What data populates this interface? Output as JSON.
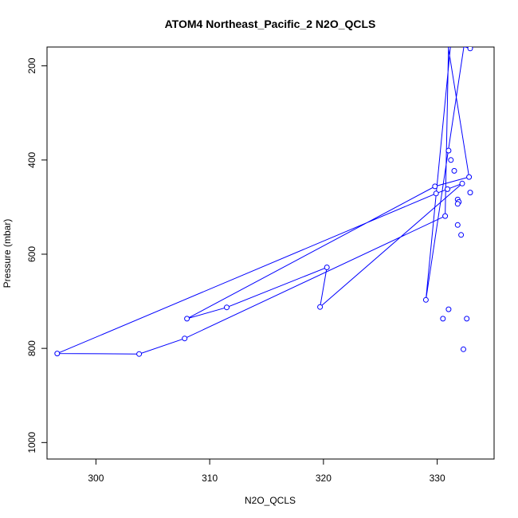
{
  "chart_data": {
    "type": "line",
    "title": "ATOM4 Northeast_Pacific_2 N2O_QCLS",
    "xlabel": "N2O_QCLS",
    "ylabel": "Pressure (mbar)",
    "xlim": [
      295.7,
      335.0
    ],
    "ylim": [
      1035,
      160
    ],
    "y_reversed": true,
    "x_ticks": [
      300,
      310,
      320,
      330
    ],
    "y_ticks": [
      200,
      400,
      600,
      800,
      1000
    ],
    "grid": false,
    "series_color": "#0000ff",
    "series": [
      {
        "x": [
          332.9,
          331.0,
          332.6,
          330.9,
          330.7,
          331.8,
          332.6,
          332.7,
          332.2,
          331.9,
          331.8,
          331.3,
          331.1,
          330.9,
          332.8,
          329.8,
          308.0,
          311.5,
          320.3,
          319.7,
          332.2,
          329.9,
          296.6,
          303.8,
          307.8,
          330.7,
          331.0,
          331.9,
          332.2,
          331.7,
          331.9,
          332.1,
          330.9,
          330.5,
          331.2,
          329.0,
          332.4
        ],
        "y": [
          163,
          150,
          150,
          150,
          150,
          150,
          150,
          150,
          150,
          150,
          150,
          150,
          150,
          150,
          436,
          456,
          737,
          713,
          628,
          712,
          450,
          471,
          811,
          812,
          779,
          519,
          150,
          150,
          150,
          150,
          150,
          150,
          150,
          150,
          150,
          697,
          150
        ]
      }
    ],
    "markers": {
      "x": [
        332.9,
        332.8,
        329.8,
        308.0,
        311.5,
        320.3,
        319.7,
        332.2,
        329.9,
        296.6,
        303.8,
        307.8,
        330.7,
        331.0,
        331.2,
        331.5,
        330.9,
        331.8,
        331.9,
        331.8,
        332.9,
        332.1,
        332.3,
        330.5,
        332.6,
        331.0,
        329.0,
        331.8
      ],
      "y": [
        163,
        436,
        456,
        737,
        713,
        628,
        712,
        450,
        471,
        811,
        812,
        779,
        519,
        380,
        400,
        423,
        462,
        484,
        489,
        538,
        469,
        559,
        802,
        737,
        737,
        717,
        697,
        493
      ]
    }
  }
}
